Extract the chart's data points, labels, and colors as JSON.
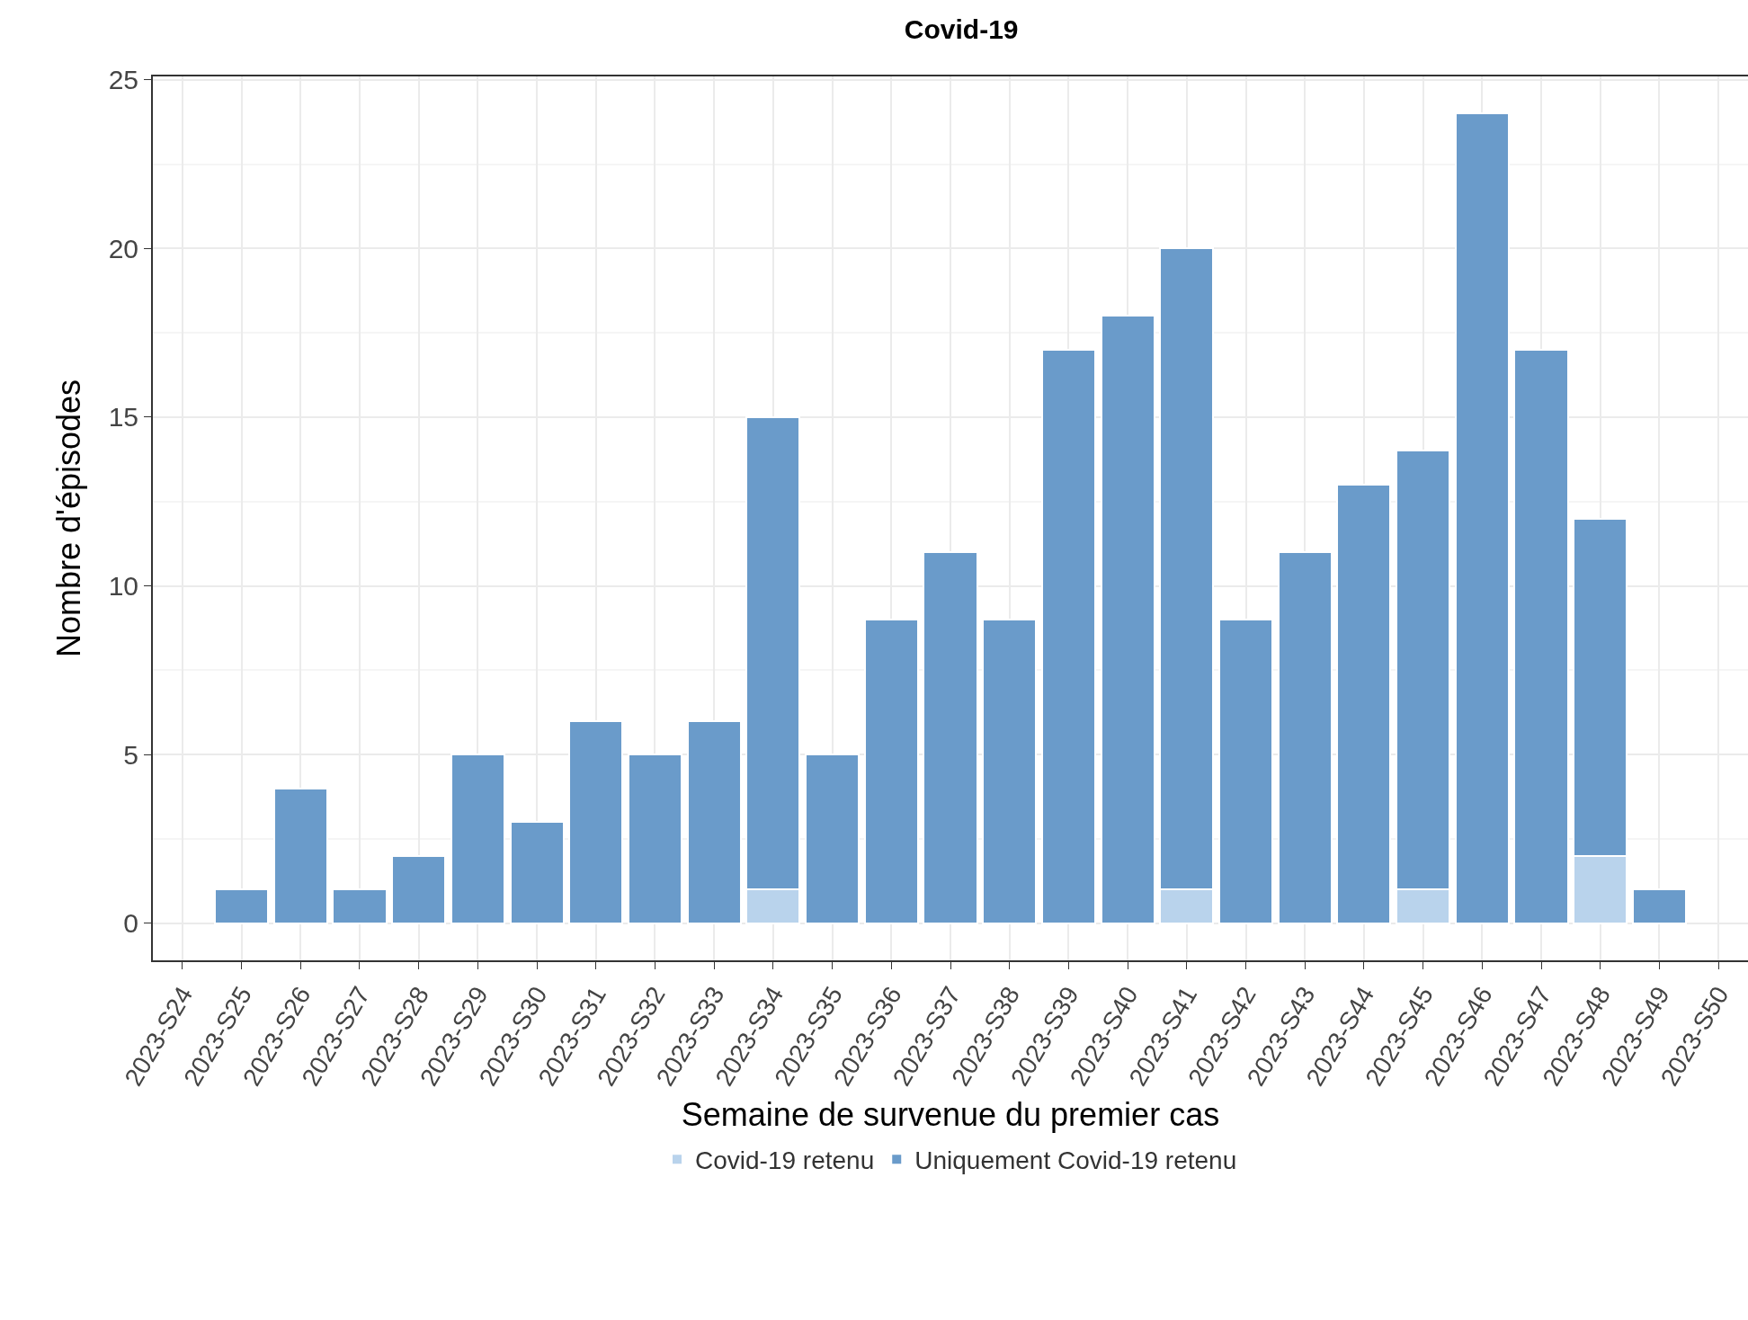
{
  "chart_data": {
    "type": "bar",
    "title": "Covid-19",
    "xlabel": "Semaine de survenue du premier cas",
    "ylabel": "Nombre d'épisodes",
    "categories": [
      "2023-S24",
      "2023-S25",
      "2023-S26",
      "2023-S27",
      "2023-S28",
      "2023-S29",
      "2023-S30",
      "2023-S31",
      "2023-S32",
      "2023-S33",
      "2023-S34",
      "2023-S35",
      "2023-S36",
      "2023-S37",
      "2023-S38",
      "2023-S39",
      "2023-S40",
      "2023-S41",
      "2023-S42",
      "2023-S43",
      "2023-S44",
      "2023-S45",
      "2023-S46",
      "2023-S47",
      "2023-S48",
      "2023-S49",
      "2023-S50"
    ],
    "stacked": true,
    "series": [
      {
        "name": "Covid-19 retenu",
        "color": "#b9d3ec",
        "values": [
          null,
          null,
          null,
          null,
          null,
          null,
          null,
          null,
          null,
          null,
          1,
          null,
          null,
          null,
          null,
          null,
          null,
          1,
          null,
          null,
          null,
          1,
          null,
          null,
          2,
          null,
          null
        ]
      },
      {
        "name": "Uniquement Covid-19 retenu",
        "color": "#6a9bca",
        "values": [
          null,
          1,
          4,
          1,
          2,
          5,
          3,
          6,
          5,
          6,
          14,
          5,
          9,
          11,
          9,
          17,
          18,
          19,
          9,
          11,
          13,
          13,
          24,
          17,
          10,
          1,
          null
        ]
      }
    ],
    "ylim": [
      -1.1,
      25.1
    ],
    "yticks": [
      0,
      5,
      10,
      15,
      20,
      25
    ],
    "grid": true,
    "legend": "bottom"
  }
}
